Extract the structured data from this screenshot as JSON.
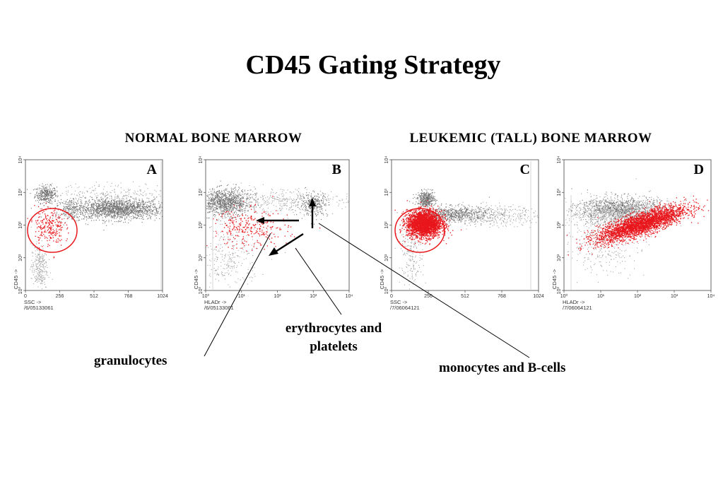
{
  "title": "CD45 Gating Strategy",
  "sections": {
    "normal": "NORMAL BONE MARROW",
    "leukemic": "LEUKEMIC (TALL) BONE MARROW"
  },
  "callouts": {
    "granulocytes": "granulocytes",
    "erythrocytes_line1": "erythrocytes and",
    "erythrocytes_line2": "platelets",
    "monocytes": "monocytes and B-cells"
  },
  "colors": {
    "gated": "#e8171c",
    "ungated": "#7a7a7a",
    "gate": "#e8171c",
    "axis": "#444444"
  },
  "panels": [
    {
      "label": "A",
      "x_axis": {
        "title": "SSC ->",
        "id": "/6/05133061",
        "scale": "linear",
        "range": [
          0,
          1024
        ],
        "ticks": [
          "0",
          "256",
          "512",
          "768",
          "1024"
        ]
      },
      "y_axis": {
        "title": "CD45 ->",
        "scale": "log",
        "range": [
          0,
          4
        ],
        "ticks": [
          "10⁰",
          "10¹",
          "10²",
          "10³",
          "10⁴"
        ]
      },
      "gate": "circle",
      "populations": [
        {
          "n": 320,
          "x": 150,
          "y": 2.95,
          "sx": 40,
          "sy": 0.13,
          "dark": true
        },
        {
          "n": 1600,
          "x": 680,
          "y": 2.5,
          "sx": 170,
          "sy": 0.16,
          "dark": true
        },
        {
          "n": 160,
          "x": 330,
          "y": 2.5,
          "sx": 45,
          "sy": 0.16,
          "dark": true
        },
        {
          "n": 260,
          "x": 100,
          "y": 0.7,
          "sx": 30,
          "sy": 0.35,
          "dark": false
        },
        {
          "n": 200,
          "x": 650,
          "y": 3.0,
          "sx": 230,
          "sy": 0.15,
          "dark": false
        },
        {
          "n": 240,
          "x": 175,
          "y": 1.95,
          "sx": 55,
          "sy": 0.3,
          "red": true
        }
      ]
    },
    {
      "label": "B",
      "x_axis": {
        "title": "HLADr ->",
        "id": "/6/05133061",
        "scale": "log",
        "range": [
          0,
          4
        ],
        "ticks": [
          "10⁰",
          "10¹",
          "10²",
          "10³",
          "10⁴"
        ]
      },
      "y_axis": {
        "title": "CD45 ->",
        "scale": "log",
        "range": [
          0,
          4
        ],
        "ticks": [
          "10⁰",
          "10¹",
          "10²",
          "10³",
          "10⁴"
        ]
      },
      "populations": [
        {
          "n": 1000,
          "x": 0.55,
          "y": 2.7,
          "sx": 0.35,
          "sy": 0.2,
          "dark": true
        },
        {
          "n": 400,
          "x": 2.1,
          "y": 2.75,
          "sx": 0.9,
          "sy": 0.18,
          "dark": false
        },
        {
          "n": 250,
          "x": 3.0,
          "y": 2.65,
          "sx": 0.2,
          "sy": 0.18,
          "dark": true
        },
        {
          "n": 300,
          "x": 0.6,
          "y": 1.0,
          "sx": 0.45,
          "sy": 0.5,
          "dark": false
        },
        {
          "n": 300,
          "x": 1.2,
          "y": 1.9,
          "sx": 0.55,
          "sy": 0.3,
          "red": true
        }
      ]
    },
    {
      "label": "C",
      "x_axis": {
        "title": "SSC ->",
        "id": "/7/06064121",
        "scale": "linear",
        "range": [
          0,
          1024
        ],
        "ticks": [
          "0",
          "256",
          "512",
          "768",
          "1024"
        ]
      },
      "y_axis": {
        "title": "CD45 ->",
        "scale": "log",
        "range": [
          0,
          4
        ],
        "ticks": [
          "10⁰",
          "10¹",
          "10²",
          "10³",
          "10⁴"
        ]
      },
      "gate": "circle",
      "populations": [
        {
          "n": 380,
          "x": 240,
          "y": 2.8,
          "sx": 30,
          "sy": 0.12,
          "dark": true
        },
        {
          "n": 600,
          "x": 430,
          "y": 2.35,
          "sx": 130,
          "sy": 0.12,
          "dark": true
        },
        {
          "n": 400,
          "x": 680,
          "y": 2.3,
          "sx": 180,
          "sy": 0.16,
          "dark": false
        },
        {
          "n": 220,
          "x": 140,
          "y": 1.2,
          "sx": 40,
          "sy": 0.55,
          "dark": false
        },
        {
          "n": 2600,
          "x": 225,
          "y": 2.05,
          "sx": 60,
          "sy": 0.2,
          "red": true
        }
      ]
    },
    {
      "label": "D",
      "x_axis": {
        "title": "HLADr ->",
        "id": "/7/06064121",
        "scale": "log",
        "range": [
          0,
          4
        ],
        "ticks": [
          "10⁰",
          "10¹",
          "10²",
          "10³",
          "10⁴"
        ]
      },
      "y_axis": {
        "title": "CD45 ->",
        "scale": "log",
        "range": [
          0,
          4
        ],
        "ticks": [
          "10⁰",
          "10¹",
          "10²",
          "10³",
          "10⁴"
        ]
      },
      "populations": [
        {
          "n": 1400,
          "x": 1.5,
          "y": 2.4,
          "sx": 0.7,
          "sy": 0.2,
          "dark": false
        },
        {
          "n": 500,
          "x": 1.5,
          "y": 2.55,
          "sx": 0.55,
          "sy": 0.18,
          "dark": true
        },
        {
          "n": 350,
          "x": 1.0,
          "y": 1.5,
          "sx": 0.5,
          "sy": 0.45,
          "dark": false
        },
        {
          "n": 3000,
          "x": 2.1,
          "y": 2.05,
          "sx": 0.6,
          "sy": 0.17,
          "red": true,
          "trend": 0.35
        }
      ]
    }
  ]
}
